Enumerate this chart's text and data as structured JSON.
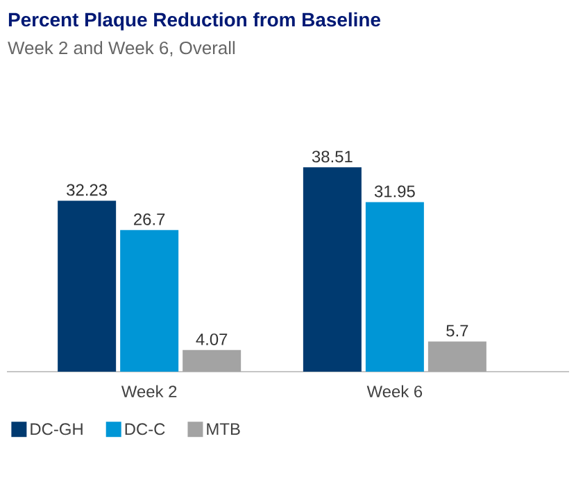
{
  "chart_data": {
    "type": "bar",
    "title": "Percent Plaque Reduction from Baseline",
    "subtitle": "Week 2 and Week 6, Overall",
    "categories": [
      "Week 2",
      "Week 6"
    ],
    "series": [
      {
        "name": "DC-GH",
        "color": "#003a70",
        "values": [
          32.23,
          38.51
        ]
      },
      {
        "name": "DC-C",
        "color": "#0096d6",
        "values": [
          26.7,
          31.95
        ]
      },
      {
        "name": "MTB",
        "color": "#a3a3a3",
        "values": [
          4.07,
          5.7
        ]
      }
    ],
    "data_labels": true,
    "legend": "bottom"
  }
}
